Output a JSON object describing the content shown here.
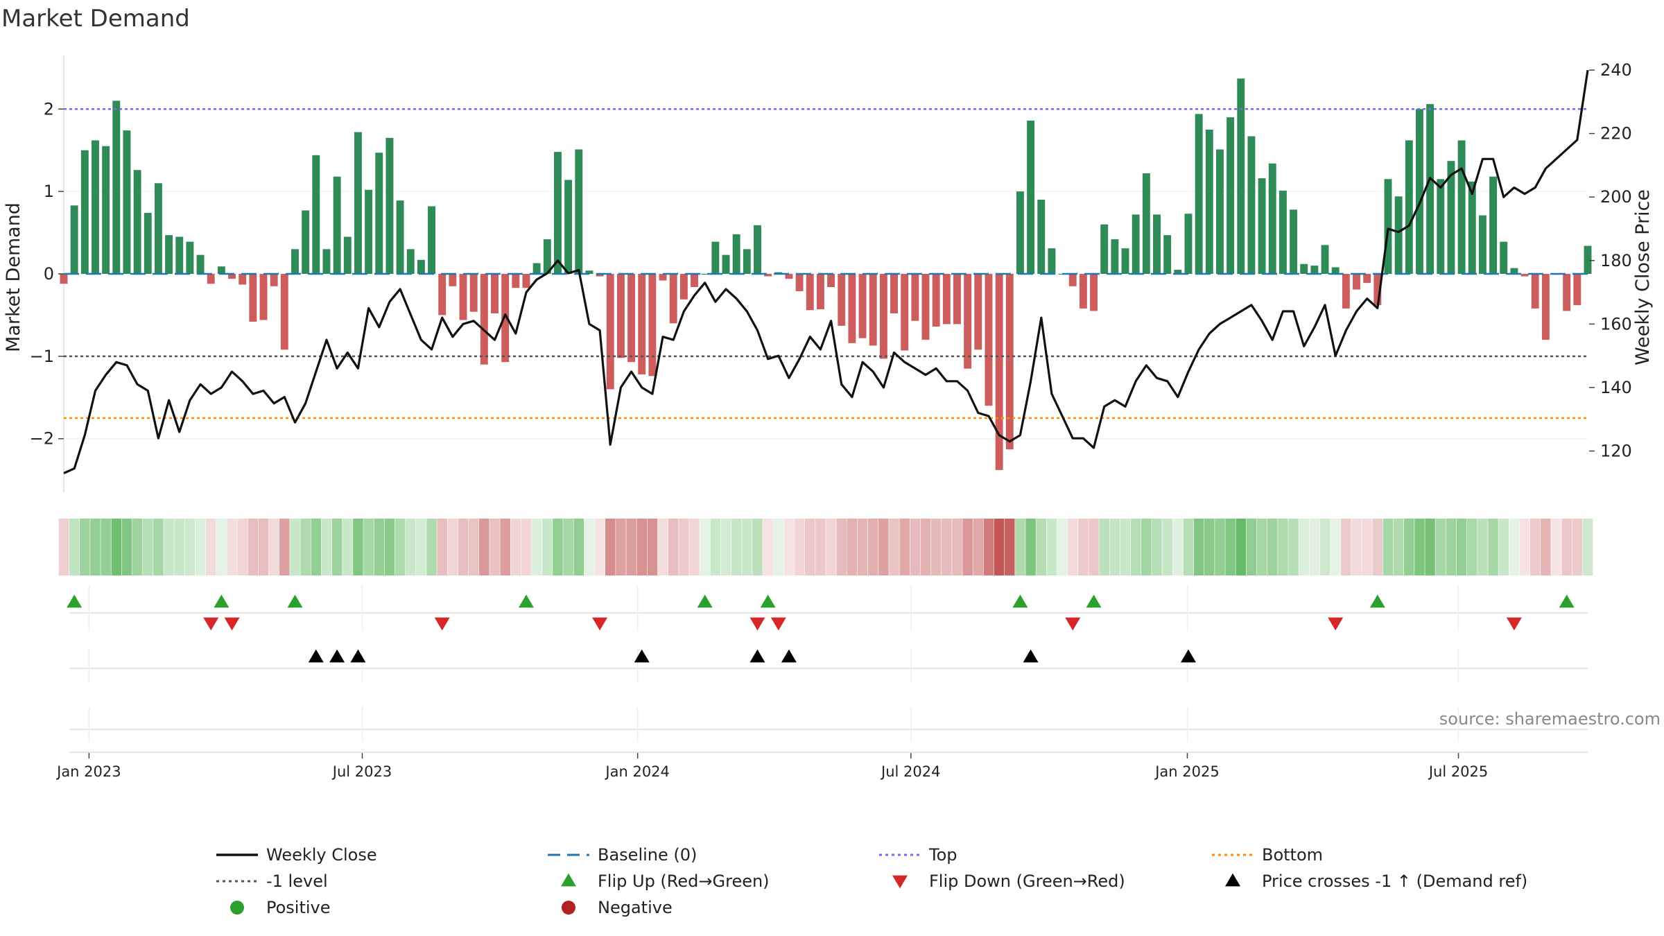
{
  "title": "Market Demand",
  "source": "source: sharemaestro.com",
  "colors": {
    "positive_bar": "#2e8b57",
    "negative_bar": "#cd5c5c",
    "price_line": "#111111",
    "baseline": "#1f77b4",
    "top": "#7b68ee",
    "bottom": "#ff8c00",
    "level": "#555555",
    "flip_up": "#2ca02c",
    "flip_down": "#d62728",
    "cross": "#000000"
  },
  "legend": [
    {
      "key": "weekly_close",
      "label": "Weekly Close",
      "kind": "line",
      "color": "#111111"
    },
    {
      "key": "baseline",
      "label": "Baseline (0)",
      "kind": "dash",
      "color": "#1f77b4"
    },
    {
      "key": "top",
      "label": "Top",
      "kind": "dot",
      "color": "#7b68ee"
    },
    {
      "key": "bottom",
      "label": "Bottom",
      "kind": "dot",
      "color": "#ff8c00"
    },
    {
      "key": "level",
      "label": "-1 level",
      "kind": "dot",
      "color": "#555555"
    },
    {
      "key": "flip_up",
      "label": "Flip Up (Red→Green)",
      "kind": "tri-up",
      "color": "#2ca02c"
    },
    {
      "key": "flip_down",
      "label": "Flip Down (Green→Red)",
      "kind": "tri-down",
      "color": "#d62728"
    },
    {
      "key": "cross",
      "label": "Price crosses -1 ↑ (Demand ref)",
      "kind": "tri-up",
      "color": "#000000"
    },
    {
      "key": "positive",
      "label": "Positive",
      "kind": "circle",
      "color": "#2ca02c"
    },
    {
      "key": "negative",
      "label": "Negative",
      "kind": "circle",
      "color": "#b22222"
    }
  ],
  "chart_data": {
    "type": "bar",
    "title": "Market Demand",
    "ylabel": "Market Demand",
    "y2label": "Weekly Close Price",
    "ylim": [
      -2.65,
      2.65
    ],
    "y2lim": [
      107,
      244.6
    ],
    "yticks": [
      -2,
      -1,
      0,
      1,
      2
    ],
    "ytick_labels": [
      "−2",
      "−1",
      "0",
      "1",
      "2"
    ],
    "y2ticks": [
      120,
      140,
      160,
      180,
      200,
      220,
      240
    ],
    "reference_lines": {
      "baseline": 0,
      "top": 2.0,
      "level": -1.0,
      "bottom": -1.75
    },
    "x_start": "2022-12-17",
    "x_interval_days": 7,
    "x_ticks": [
      {
        "label": "Jan 2023",
        "week": 2.4
      },
      {
        "label": "Jul 2023",
        "week": 28.4
      },
      {
        "label": "Jan 2024",
        "week": 54.6
      },
      {
        "label": "Jul 2024",
        "week": 80.6
      },
      {
        "label": "Jan 2025",
        "week": 106.9
      },
      {
        "label": "Jul 2025",
        "week": 132.7
      }
    ],
    "demand": [
      -0.12,
      0.83,
      1.5,
      1.62,
      1.55,
      2.1,
      1.74,
      1.26,
      0.74,
      1.1,
      0.47,
      0.45,
      0.39,
      0.23,
      -0.12,
      0.09,
      -0.06,
      -0.13,
      -0.58,
      -0.56,
      -0.15,
      -0.92,
      0.3,
      0.77,
      1.44,
      0.3,
      1.18,
      0.45,
      1.72,
      1.02,
      1.47,
      1.65,
      0.89,
      0.3,
      0.17,
      0.82,
      -0.5,
      -0.15,
      -0.56,
      -0.46,
      -1.1,
      -0.48,
      -1.07,
      -0.17,
      -0.17,
      0.13,
      0.42,
      1.48,
      1.14,
      1.51,
      0.04,
      -0.03,
      -1.4,
      -1.02,
      -1.07,
      -1.22,
      -1.24,
      -0.08,
      -0.6,
      -0.31,
      -0.16,
      0.0,
      0.39,
      0.23,
      0.48,
      0.3,
      0.59,
      -0.03,
      0.02,
      -0.06,
      -0.21,
      -0.44,
      -0.43,
      -0.16,
      -0.63,
      -0.84,
      -0.78,
      -0.87,
      -1.03,
      -0.48,
      -0.93,
      -0.57,
      -0.8,
      -0.64,
      -0.61,
      -0.61,
      -1.15,
      -0.92,
      -1.6,
      -2.38,
      -2.13,
      1.0,
      1.86,
      0.9,
      0.31,
      0.0,
      -0.15,
      -0.42,
      -0.45,
      0.6,
      0.42,
      0.31,
      0.72,
      1.22,
      0.72,
      0.47,
      0.05,
      0.73,
      1.94,
      1.75,
      1.51,
      1.9,
      2.37,
      1.67,
      1.16,
      1.34,
      1.01,
      0.78,
      0.12,
      0.1,
      0.35,
      0.08,
      -0.42,
      -0.19,
      -0.11,
      -0.38,
      1.15,
      0.94,
      1.62,
      2.0,
      2.06,
      1.15,
      1.37,
      1.62,
      1.12,
      0.71,
      1.18,
      0.39,
      0.07,
      -0.03,
      -0.42,
      -0.8,
      -0.01,
      -0.45,
      -0.38,
      0.34
    ],
    "price": [
      113,
      114.5,
      125,
      139,
      144,
      148,
      147,
      141,
      139,
      124,
      136,
      126,
      136,
      141,
      138,
      140,
      145,
      142,
      138,
      139,
      135,
      137,
      129,
      135,
      145,
      155,
      146,
      151,
      146,
      165,
      159,
      167,
      171,
      163,
      155,
      152,
      162,
      156,
      160,
      161,
      158,
      155,
      163,
      157,
      170,
      174,
      176,
      180,
      176,
      177,
      160,
      158,
      122,
      140,
      145,
      140,
      138,
      156,
      155,
      164,
      169,
      173,
      167,
      171,
      168,
      164,
      158,
      149,
      150,
      143,
      149,
      156,
      152,
      161,
      141,
      137,
      148,
      145,
      140,
      151,
      148,
      146,
      144,
      146,
      142,
      142,
      139,
      132,
      131,
      125,
      123,
      125,
      142,
      162,
      138,
      131,
      124,
      124,
      121,
      134,
      136,
      134,
      142,
      147,
      143,
      142,
      137,
      145,
      152,
      157,
      160,
      162,
      164,
      166,
      161,
      155,
      164,
      164,
      153,
      159,
      166,
      150,
      158,
      164,
      168,
      165,
      190,
      189,
      191,
      198,
      206,
      203,
      207,
      209,
      201,
      212,
      212,
      200,
      203,
      201,
      203,
      209,
      212,
      215,
      218,
      240
    ],
    "strip_intensity": [
      0.25,
      0.35,
      0.55,
      0.6,
      0.6,
      0.8,
      0.7,
      0.55,
      0.4,
      0.5,
      0.3,
      0.3,
      0.28,
      0.2,
      0.2,
      0.15,
      0.18,
      0.22,
      0.35,
      0.35,
      0.2,
      0.5,
      0.3,
      0.45,
      0.6,
      0.3,
      0.55,
      0.3,
      0.7,
      0.5,
      0.6,
      0.65,
      0.45,
      0.3,
      0.25,
      0.45,
      0.35,
      0.22,
      0.35,
      0.32,
      0.55,
      0.33,
      0.52,
      0.22,
      0.22,
      0.2,
      0.3,
      0.6,
      0.5,
      0.62,
      0.12,
      0.15,
      0.62,
      0.5,
      0.52,
      0.58,
      0.58,
      0.18,
      0.35,
      0.28,
      0.22,
      0.12,
      0.3,
      0.25,
      0.32,
      0.3,
      0.38,
      0.15,
      0.12,
      0.15,
      0.22,
      0.3,
      0.3,
      0.22,
      0.36,
      0.42,
      0.4,
      0.43,
      0.5,
      0.32,
      0.46,
      0.36,
      0.42,
      0.37,
      0.36,
      0.36,
      0.55,
      0.46,
      0.7,
      0.9,
      0.85,
      0.45,
      0.72,
      0.42,
      0.3,
      0.12,
      0.2,
      0.28,
      0.3,
      0.38,
      0.32,
      0.3,
      0.4,
      0.52,
      0.4,
      0.32,
      0.18,
      0.4,
      0.7,
      0.65,
      0.6,
      0.7,
      0.85,
      0.62,
      0.5,
      0.55,
      0.45,
      0.4,
      0.2,
      0.18,
      0.28,
      0.15,
      0.28,
      0.2,
      0.2,
      0.28,
      0.5,
      0.45,
      0.6,
      0.72,
      0.75,
      0.5,
      0.55,
      0.6,
      0.48,
      0.38,
      0.5,
      0.3,
      0.15,
      0.15,
      0.28,
      0.4,
      0.1,
      0.3,
      0.28,
      0.28
    ],
    "flip_up_weeks": [
      1,
      15,
      22,
      44,
      61,
      67,
      91,
      98,
      125,
      143
    ],
    "flip_down_weeks": [
      14,
      16,
      36,
      51,
      66,
      68,
      96,
      121,
      138
    ],
    "price_cross_weeks": [
      24,
      26,
      28,
      55,
      66,
      69,
      92,
      107
    ]
  }
}
